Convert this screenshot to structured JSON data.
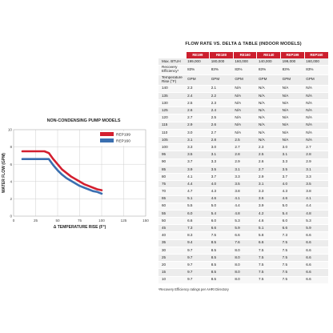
{
  "chart_data": {
    "type": "line",
    "title": "NON-CONDENSING PUMP MODELS",
    "xlabel": "Δ TEMPERATURE RISE (F°)",
    "ylabel": "WATER FLOW (GPM)",
    "xlim": [
      0,
      150
    ],
    "ylim": [
      0,
      10
    ],
    "xticks": [
      0,
      25,
      50,
      75,
      100,
      125,
      150
    ],
    "yticks": [
      0,
      2,
      4,
      6,
      8,
      10
    ],
    "grid": true,
    "legend_position": "top-right",
    "series": [
      {
        "name": "REP199",
        "color": "#d31f2f",
        "x": [
          10,
          15,
          20,
          25,
          30,
          35,
          40,
          45,
          50,
          55,
          60,
          65,
          70,
          75,
          80,
          85,
          90,
          95,
          100
        ],
        "y": [
          7.5,
          7.5,
          7.5,
          7.5,
          7.5,
          7.5,
          7.3,
          6.6,
          6.0,
          5.4,
          5.0,
          4.6,
          4.3,
          4.0,
          3.7,
          3.5,
          3.3,
          3.1,
          3.0
        ]
      },
      {
        "name": "REP160",
        "color": "#3a6fb0",
        "x": [
          10,
          15,
          20,
          25,
          30,
          35,
          40,
          45,
          50,
          55,
          60,
          65,
          70,
          75,
          80,
          85,
          90,
          95,
          100
        ],
        "y": [
          6.6,
          6.6,
          6.6,
          6.6,
          6.6,
          6.6,
          6.6,
          5.9,
          5.3,
          4.8,
          4.4,
          4.1,
          3.8,
          3.5,
          3.3,
          3.1,
          2.9,
          2.8,
          2.6
        ]
      }
    ]
  },
  "table": {
    "title": "FLOW RATE VS. DELTA Δ TABLE (INDOOR MODELS)",
    "models": [
      "RE199",
      "RE180",
      "RE160",
      "RE140",
      "REP199",
      "REP160"
    ],
    "max_btuh_label": "Max. BTUH",
    "max_btuh": [
      "199,000",
      "180,000",
      "160,000",
      "140,000",
      "199,000",
      "160,000"
    ],
    "efficiency_label": "Recovery Efficiency¹",
    "efficiency": [
      "83%",
      "83%",
      "83%",
      "83%",
      "83%",
      "83%"
    ],
    "temp_rise_label": "Temperature Rise (°F)",
    "unit": "GPM",
    "rows": [
      {
        "rise": "140",
        "values": [
          "2.3",
          "2.1",
          "N/A",
          "N/A",
          "N/A",
          "N/A"
        ]
      },
      {
        "rise": "135",
        "values": [
          "2.4",
          "2.2",
          "N/A",
          "N/A",
          "N/A",
          "N/A"
        ]
      },
      {
        "rise": "130",
        "values": [
          "2.5",
          "2.3",
          "N/A",
          "N/A",
          "N/A",
          "N/A"
        ]
      },
      {
        "rise": "125",
        "values": [
          "2.6",
          "2.4",
          "N/A",
          "N/A",
          "N/A",
          "N/A"
        ]
      },
      {
        "rise": "120",
        "values": [
          "2.7",
          "2.5",
          "N/A",
          "N/A",
          "N/A",
          "N/A"
        ]
      },
      {
        "rise": "115",
        "values": [
          "2.9",
          "2.6",
          "N/A",
          "N/A",
          "N/A",
          "N/A"
        ]
      },
      {
        "rise": "110",
        "values": [
          "3.0",
          "2.7",
          "N/A",
          "N/A",
          "N/A",
          "N/A"
        ]
      },
      {
        "rise": "105",
        "values": [
          "3.1",
          "2.8",
          "2.5",
          "N/A",
          "N/A",
          "N/A"
        ]
      },
      {
        "rise": "100",
        "values": [
          "3.3",
          "3.0",
          "2.7",
          "2.3",
          "3.0",
          "2.7"
        ]
      },
      {
        "rise": "95",
        "values": [
          "3.5",
          "3.1",
          "2.8",
          "2.5",
          "3.1",
          "2.8"
        ]
      },
      {
        "rise": "90",
        "values": [
          "3.7",
          "3.3",
          "2.9",
          "2.6",
          "3.3",
          "2.9"
        ]
      },
      {
        "rise": "85",
        "values": [
          "3.9",
          "3.5",
          "3.1",
          "2.7",
          "3.5",
          "3.1"
        ]
      },
      {
        "rise": "80",
        "values": [
          "4.1",
          "3.7",
          "3.3",
          "2.9",
          "3.7",
          "3.3"
        ]
      },
      {
        "rise": "75",
        "values": [
          "4.4",
          "4.0",
          "3.5",
          "3.1",
          "4.0",
          "3.5"
        ]
      },
      {
        "rise": "70",
        "values": [
          "4.7",
          "4.3",
          "3.8",
          "3.3",
          "4.3",
          "3.8"
        ]
      },
      {
        "rise": "65",
        "values": [
          "5.1",
          "4.6",
          "4.1",
          "3.6",
          "4.6",
          "4.1"
        ]
      },
      {
        "rise": "60",
        "values": [
          "5.5",
          "5.0",
          "4.4",
          "3.9",
          "5.0",
          "4.4"
        ]
      },
      {
        "rise": "55",
        "values": [
          "6.0",
          "5.4",
          "4.8",
          "4.2",
          "5.4",
          "4.8"
        ]
      },
      {
        "rise": "50",
        "values": [
          "6.6",
          "6.0",
          "5.3",
          "4.6",
          "6.0",
          "5.3"
        ]
      },
      {
        "rise": "45",
        "values": [
          "7.3",
          "6.6",
          "5.9",
          "5.1",
          "6.6",
          "5.9"
        ]
      },
      {
        "rise": "40",
        "values": [
          "8.3",
          "7.5",
          "6.6",
          "5.8",
          "7.3",
          "6.6"
        ]
      },
      {
        "rise": "35",
        "values": [
          "9.4",
          "8.5",
          "7.6",
          "6.6",
          "7.5",
          "6.6"
        ]
      },
      {
        "rise": "30",
        "values": [
          "9.7",
          "8.5",
          "8.0",
          "7.5",
          "7.5",
          "6.6"
        ]
      },
      {
        "rise": "25",
        "values": [
          "9.7",
          "8.5",
          "8.0",
          "7.5",
          "7.5",
          "6.6"
        ]
      },
      {
        "rise": "20",
        "values": [
          "9.7",
          "8.5",
          "8.0",
          "7.5",
          "7.5",
          "6.6"
        ]
      },
      {
        "rise": "15",
        "values": [
          "9.7",
          "8.5",
          "8.0",
          "7.5",
          "7.5",
          "6.6"
        ]
      },
      {
        "rise": "10",
        "values": [
          "9.7",
          "8.5",
          "8.0",
          "7.5",
          "7.5",
          "6.6"
        ]
      }
    ],
    "footnote": "¹Recovery Efficiency ratings per AHRI Directory"
  }
}
